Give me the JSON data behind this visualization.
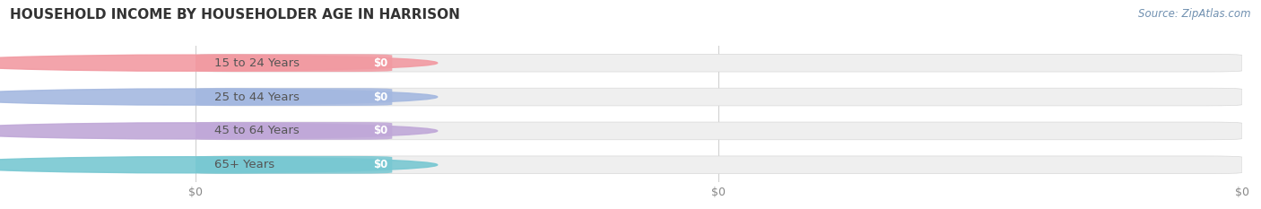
{
  "title": "HOUSEHOLD INCOME BY HOUSEHOLDER AGE IN HARRISON",
  "source_text": "Source: ZipAtlas.com",
  "categories": [
    "15 to 24 Years",
    "25 to 44 Years",
    "45 to 64 Years",
    "65+ Years"
  ],
  "values": [
    0,
    0,
    0,
    0
  ],
  "bar_colors": [
    "#f29aa2",
    "#a4b8e0",
    "#c0a8d8",
    "#78c8d2"
  ],
  "bar_bg_color": "#efefef",
  "bar_border_color": "#d8d8d8",
  "category_text_color": "#555555",
  "title_color": "#333333",
  "background_color": "#ffffff",
  "tick_label_color": "#888888",
  "source_color": "#7090b0",
  "title_fontsize": 11,
  "label_fontsize": 8.5,
  "category_fontsize": 9.5,
  "tick_fontsize": 9,
  "source_fontsize": 8.5
}
